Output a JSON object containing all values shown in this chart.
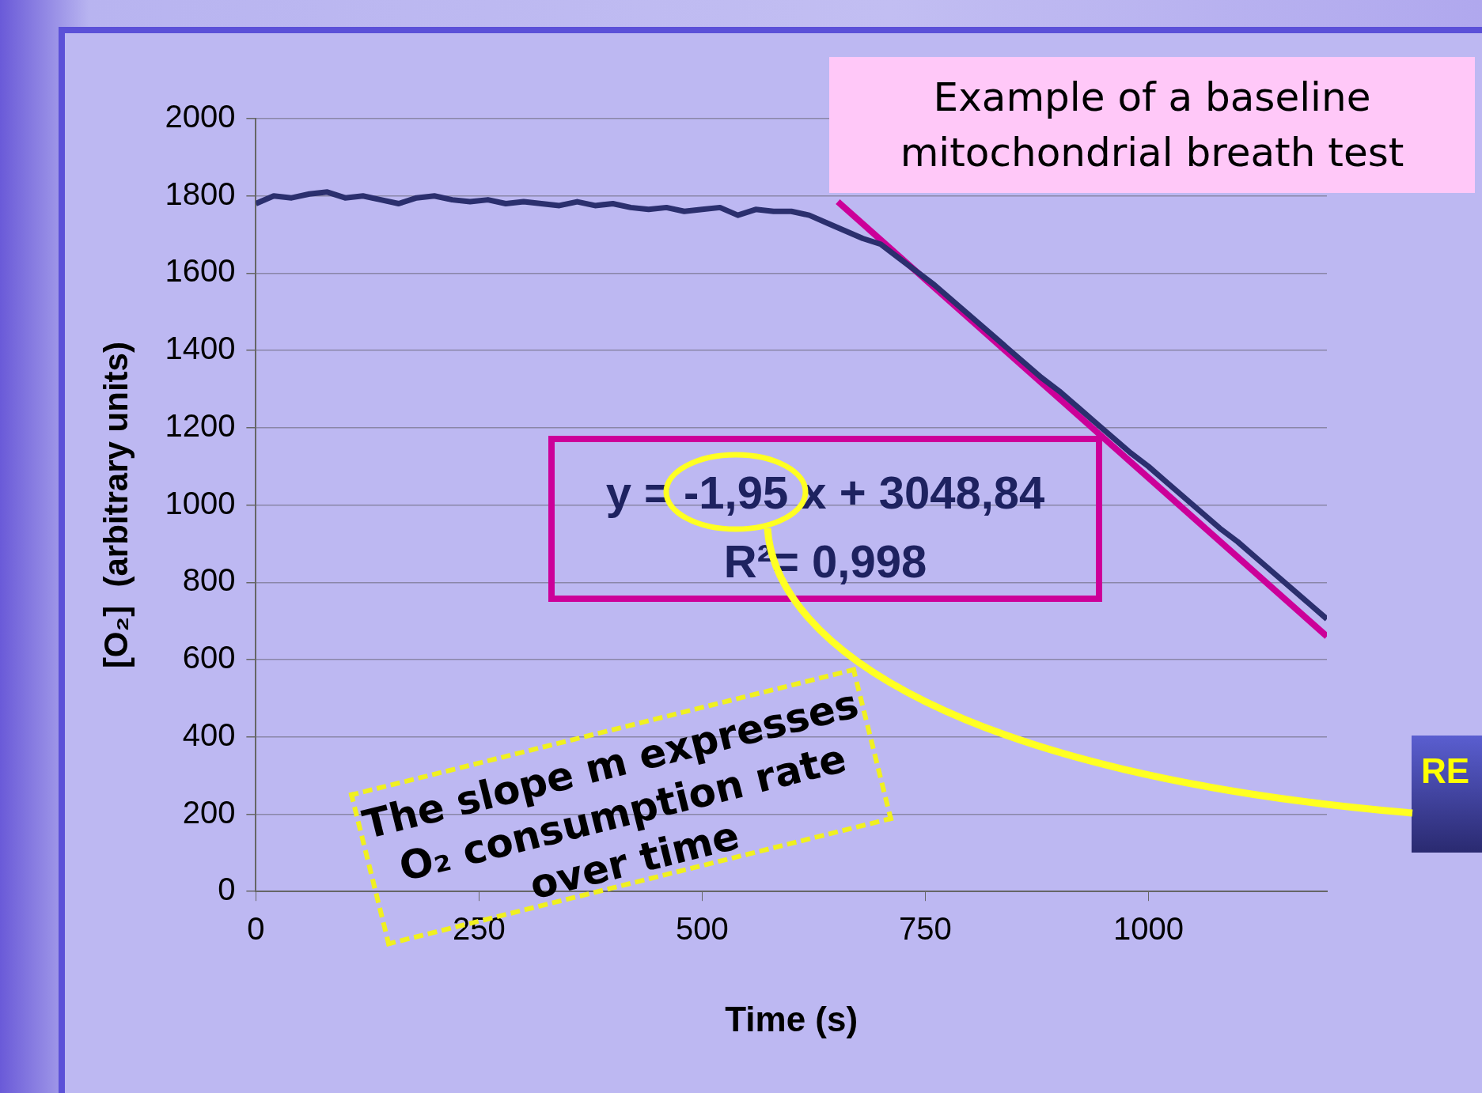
{
  "chart_data": {
    "type": "line",
    "title": "Example of a baseline mitochondrial breath test",
    "xlabel": "Time (s)",
    "ylabel": "[O₂]  (arbitrary units)",
    "xlim": [
      0,
      1200
    ],
    "xticks": [
      0,
      250,
      500,
      750,
      1000
    ],
    "ylim": [
      0,
      2000
    ],
    "yticks": [
      0,
      200,
      400,
      600,
      800,
      1000,
      1200,
      1400,
      1600,
      1800,
      2000
    ],
    "grid": "y",
    "legend": false,
    "marker": "none",
    "line_style": "solid",
    "annotations": [
      "y = -1,95 x + 3048,84",
      "R²= 0,998",
      "The slope m expresses O₂ consumption rate over time",
      "RE"
    ],
    "series": [
      {
        "color": "#2b2f6e",
        "x": [
          0,
          20,
          40,
          60,
          80,
          100,
          120,
          140,
          160,
          180,
          200,
          220,
          240,
          260,
          280,
          300,
          320,
          340,
          360,
          380,
          400,
          420,
          440,
          460,
          480,
          500,
          520,
          540,
          560,
          580,
          600,
          620,
          640,
          660,
          680,
          700,
          720,
          740,
          760,
          780,
          800,
          820,
          840,
          860,
          880,
          900,
          920,
          940,
          960,
          980,
          1000,
          1020,
          1040,
          1060,
          1080,
          1100,
          1120,
          1140,
          1160,
          1180,
          1200
        ],
        "values": [
          1780,
          1800,
          1795,
          1805,
          1810,
          1795,
          1800,
          1790,
          1780,
          1795,
          1800,
          1790,
          1785,
          1790,
          1780,
          1785,
          1780,
          1775,
          1785,
          1775,
          1780,
          1770,
          1765,
          1770,
          1760,
          1765,
          1770,
          1750,
          1765,
          1760,
          1760,
          1750,
          1730,
          1710,
          1690,
          1675,
          1640,
          1605,
          1570,
          1530,
          1490,
          1450,
          1410,
          1370,
          1330,
          1295,
          1255,
          1215,
          1175,
          1135,
          1100,
          1060,
          1020,
          980,
          940,
          905,
          865,
          825,
          785,
          745,
          705
        ]
      },
      {
        "type": "line",
        "color": "#cc0099",
        "x": [
          652,
          1200
        ],
        "values": [
          1785,
          660
        ]
      }
    ]
  }
}
